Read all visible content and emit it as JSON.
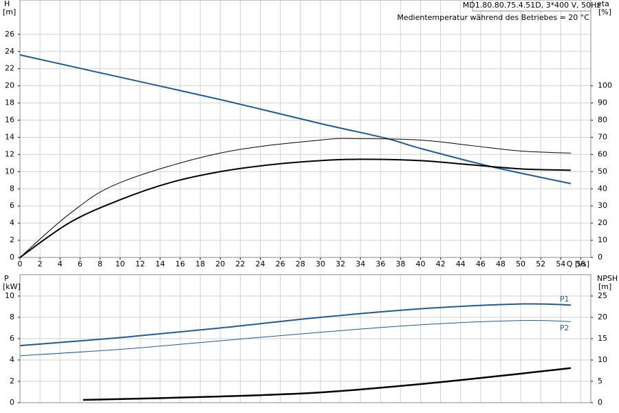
{
  "chart_data": [
    {
      "type": "line",
      "title": "MD1.80.80.75.4.51D, 3*400 V, 50Hz",
      "annotation": "Medientemperatur während des Betriebes = 20 °C",
      "xlabel": "Q [l/s]",
      "ylabel": "H",
      "yunit": "[m]",
      "y2label": "eta",
      "y2unit": "[%]",
      "xlim": [
        0,
        57
      ],
      "xticks": [
        0,
        2,
        4,
        6,
        8,
        10,
        12,
        14,
        16,
        18,
        20,
        22,
        24,
        26,
        28,
        30,
        32,
        34,
        36,
        38,
        40,
        42,
        44,
        46,
        48,
        50,
        52,
        54,
        56
      ],
      "ylim": [
        0,
        30
      ],
      "yticks": [
        0,
        2,
        4,
        6,
        8,
        10,
        12,
        14,
        16,
        18,
        20,
        22,
        24,
        26
      ],
      "y2lim": [
        0,
        150
      ],
      "y2ticks": [
        0,
        10,
        20,
        30,
        40,
        50,
        60,
        70,
        80,
        90,
        100
      ],
      "grid": true,
      "series": [
        {
          "color": "#1f5a92",
          "line_width": 2,
          "x": [
            0,
            10,
            20,
            30,
            36.5,
            40,
            47,
            55
          ],
          "values": [
            23.6,
            21.0,
            18.4,
            15.6,
            13.9,
            12.7,
            10.6,
            8.6
          ]
        },
        {
          "color": "#000000",
          "line_width": 1,
          "axis": "y2",
          "x": [
            0,
            5,
            10,
            20,
            30,
            34,
            40,
            45,
            50,
            55
          ],
          "values": [
            0,
            25.6,
            43.6,
            60.8,
            68.4,
            69.2,
            68.4,
            65.2,
            62,
            60.8
          ]
        },
        {
          "color": "#000000",
          "line_width": 2,
          "axis": "y2",
          "x": [
            0,
            5,
            10,
            15,
            20,
            25,
            30,
            34,
            40,
            45,
            50,
            55
          ],
          "values": [
            0,
            20.4,
            33.6,
            43.6,
            50,
            54,
            56.4,
            57.2,
            56.4,
            54,
            51.6,
            50.8
          ]
        }
      ]
    },
    {
      "type": "line",
      "ylabel": "P",
      "yunit": "[kW]",
      "y2label": "NPSH",
      "y2unit": "[m]",
      "xlim": [
        0,
        57
      ],
      "ylim": [
        0,
        12
      ],
      "yticks": [
        0,
        2,
        4,
        6,
        8,
        10
      ],
      "y2lim": [
        0,
        30
      ],
      "y2ticks": [
        0,
        5,
        10,
        15,
        20,
        25
      ],
      "grid": true,
      "series": [
        {
          "name": "P1",
          "color": "#1f5a92",
          "line_width": 2,
          "x": [
            0,
            10,
            20,
            30,
            40,
            50,
            55
          ],
          "values": [
            5.35,
            6.1,
            7.0,
            8.0,
            8.8,
            9.25,
            9.15
          ]
        },
        {
          "name": "P2",
          "color": "#1f5a92",
          "line_width": 1,
          "x": [
            0,
            10,
            20,
            30,
            40,
            50,
            55
          ],
          "values": [
            4.4,
            5.0,
            5.8,
            6.6,
            7.3,
            7.7,
            7.6
          ]
        },
        {
          "color": "#000000",
          "line_width": 2.5,
          "axis": "y2",
          "x": [
            6.3,
            20,
            30,
            40,
            50,
            55
          ],
          "values": [
            0.65,
            1.45,
            2.4,
            4.35,
            6.8,
            8.1
          ]
        }
      ]
    }
  ]
}
